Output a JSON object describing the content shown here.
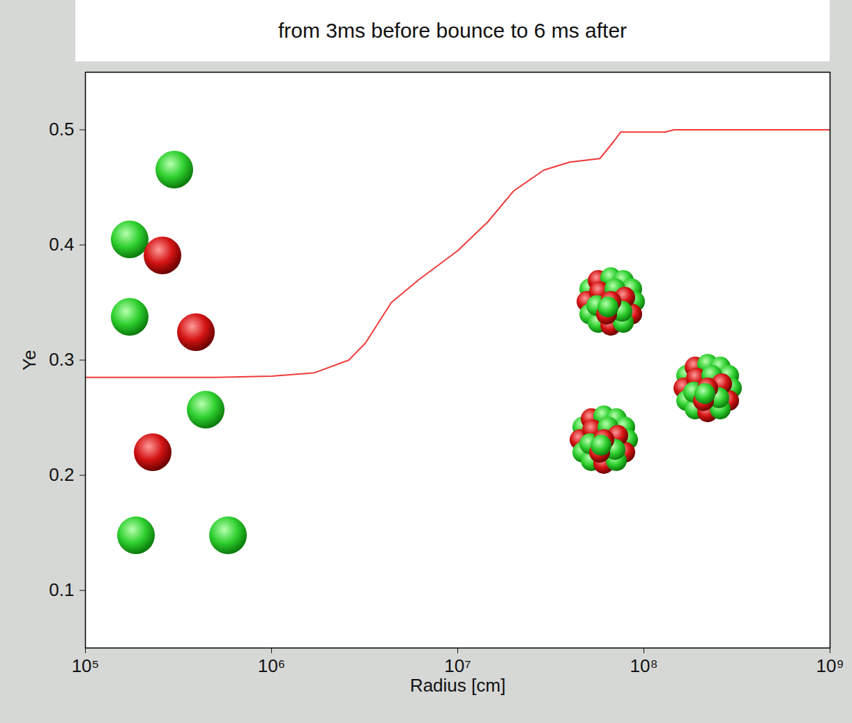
{
  "chart_data": {
    "type": "line",
    "title": "from 3ms before bounce to 6 ms after",
    "xlabel": "Radius [cm]",
    "ylabel": "Ye",
    "log": "x",
    "grid": false,
    "color": "#f03a3a",
    "x": [
      100000,
      500000,
      1000000,
      1700000,
      2600000,
      3200000,
      4400000,
      6200000,
      10000000,
      14500000,
      20000000,
      29000000,
      40000000,
      58000000,
      69000000,
      75000000,
      130000000,
      145000000,
      1000000000
    ],
    "values": [
      0.285,
      0.285,
      0.286,
      0.289,
      0.3,
      0.315,
      0.35,
      0.37,
      0.395,
      0.42,
      0.447,
      0.465,
      0.472,
      0.475,
      0.49,
      0.498,
      0.498,
      0.5,
      0.5
    ],
    "xlim": [
      100000,
      1000000000
    ],
    "ylim": [
      0.05,
      0.55
    ],
    "xticks": [
      {
        "value": 100000,
        "label": "10⁵"
      },
      {
        "value": 1000000,
        "label": "10⁶"
      },
      {
        "value": 10000000,
        "label": "10⁷"
      },
      {
        "value": 100000000,
        "label": "10⁸"
      },
      {
        "value": 1000000000,
        "label": "10⁹"
      }
    ],
    "yticks": [
      0.1,
      0.2,
      0.3,
      0.4,
      0.5
    ]
  }
}
